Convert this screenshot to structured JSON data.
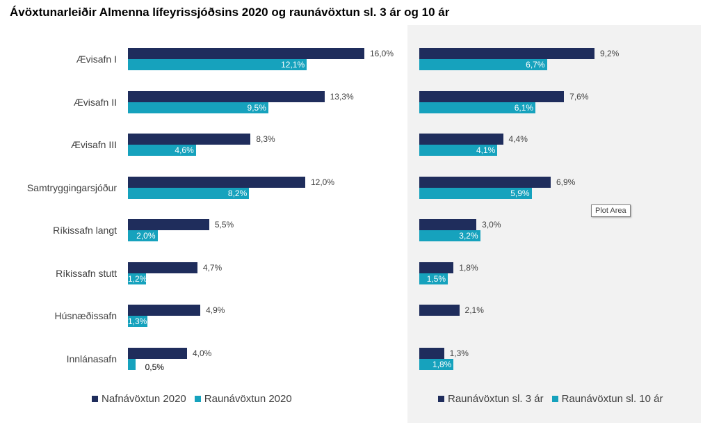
{
  "title": "Ávöxtunarleiðir Almenna lífeyrissjóðsins 2020 og raunávöxtun sl. 3 ár og 10 ár",
  "colors": {
    "dark": "#1f2d5c",
    "teal": "#16a2bd",
    "panel": "#f2f2f2"
  },
  "tooltip": "Plot Area",
  "chart_data": [
    {
      "type": "bar",
      "orientation": "horizontal",
      "categories": [
        "Ævisafn I",
        "Ævisafn II",
        "Ævisafn III",
        "Samtryggingarsjóður",
        "Ríkissafn langt",
        "Ríkissafn stutt",
        "Húsnæðissafn",
        "Innlánasafn"
      ],
      "series": [
        {
          "name": "Nafnávöxtun 2020",
          "values": [
            16.0,
            13.3,
            8.3,
            12.0,
            5.5,
            4.7,
            4.9,
            4.0
          ],
          "labels": [
            "16,0%",
            "13,3%",
            "8,3%",
            "12,0%",
            "5,5%",
            "4,7%",
            "4,9%",
            "4,0%"
          ]
        },
        {
          "name": "Raunávöxtun 2020",
          "values": [
            12.1,
            9.5,
            4.6,
            8.2,
            2.0,
            1.2,
            1.3,
            0.5
          ],
          "labels": [
            "12,1%",
            "9,5%",
            "4,6%",
            "8,2%",
            "2,0%",
            "1,2%",
            "1,3%",
            "0,5%"
          ]
        }
      ],
      "legend_position": "bottom"
    },
    {
      "type": "bar",
      "orientation": "horizontal",
      "categories": [
        "Ævisafn I",
        "Ævisafn II",
        "Ævisafn III",
        "Samtryggingarsjóður",
        "Ríkissafn langt",
        "Ríkissafn stutt",
        "Húsnæðissafn",
        "Innlánasafn"
      ],
      "series": [
        {
          "name": "Raunávöxtun sl. 3 ár",
          "values": [
            9.2,
            7.6,
            4.4,
            6.9,
            3.0,
            1.8,
            2.1,
            1.3
          ],
          "labels": [
            "9,2%",
            "7,6%",
            "4,4%",
            "6,9%",
            "3,0%",
            "1,8%",
            "2,1%",
            "1,3%"
          ]
        },
        {
          "name": "Raunávöxtun sl. 10 ár",
          "values": [
            6.7,
            6.1,
            4.1,
            5.9,
            3.2,
            1.5,
            null,
            1.8
          ],
          "labels": [
            "6,7%",
            "6,1%",
            "4,1%",
            "5,9%",
            "3,2%",
            "1,5%",
            "",
            "1,8%"
          ]
        }
      ],
      "legend_position": "bottom"
    }
  ]
}
